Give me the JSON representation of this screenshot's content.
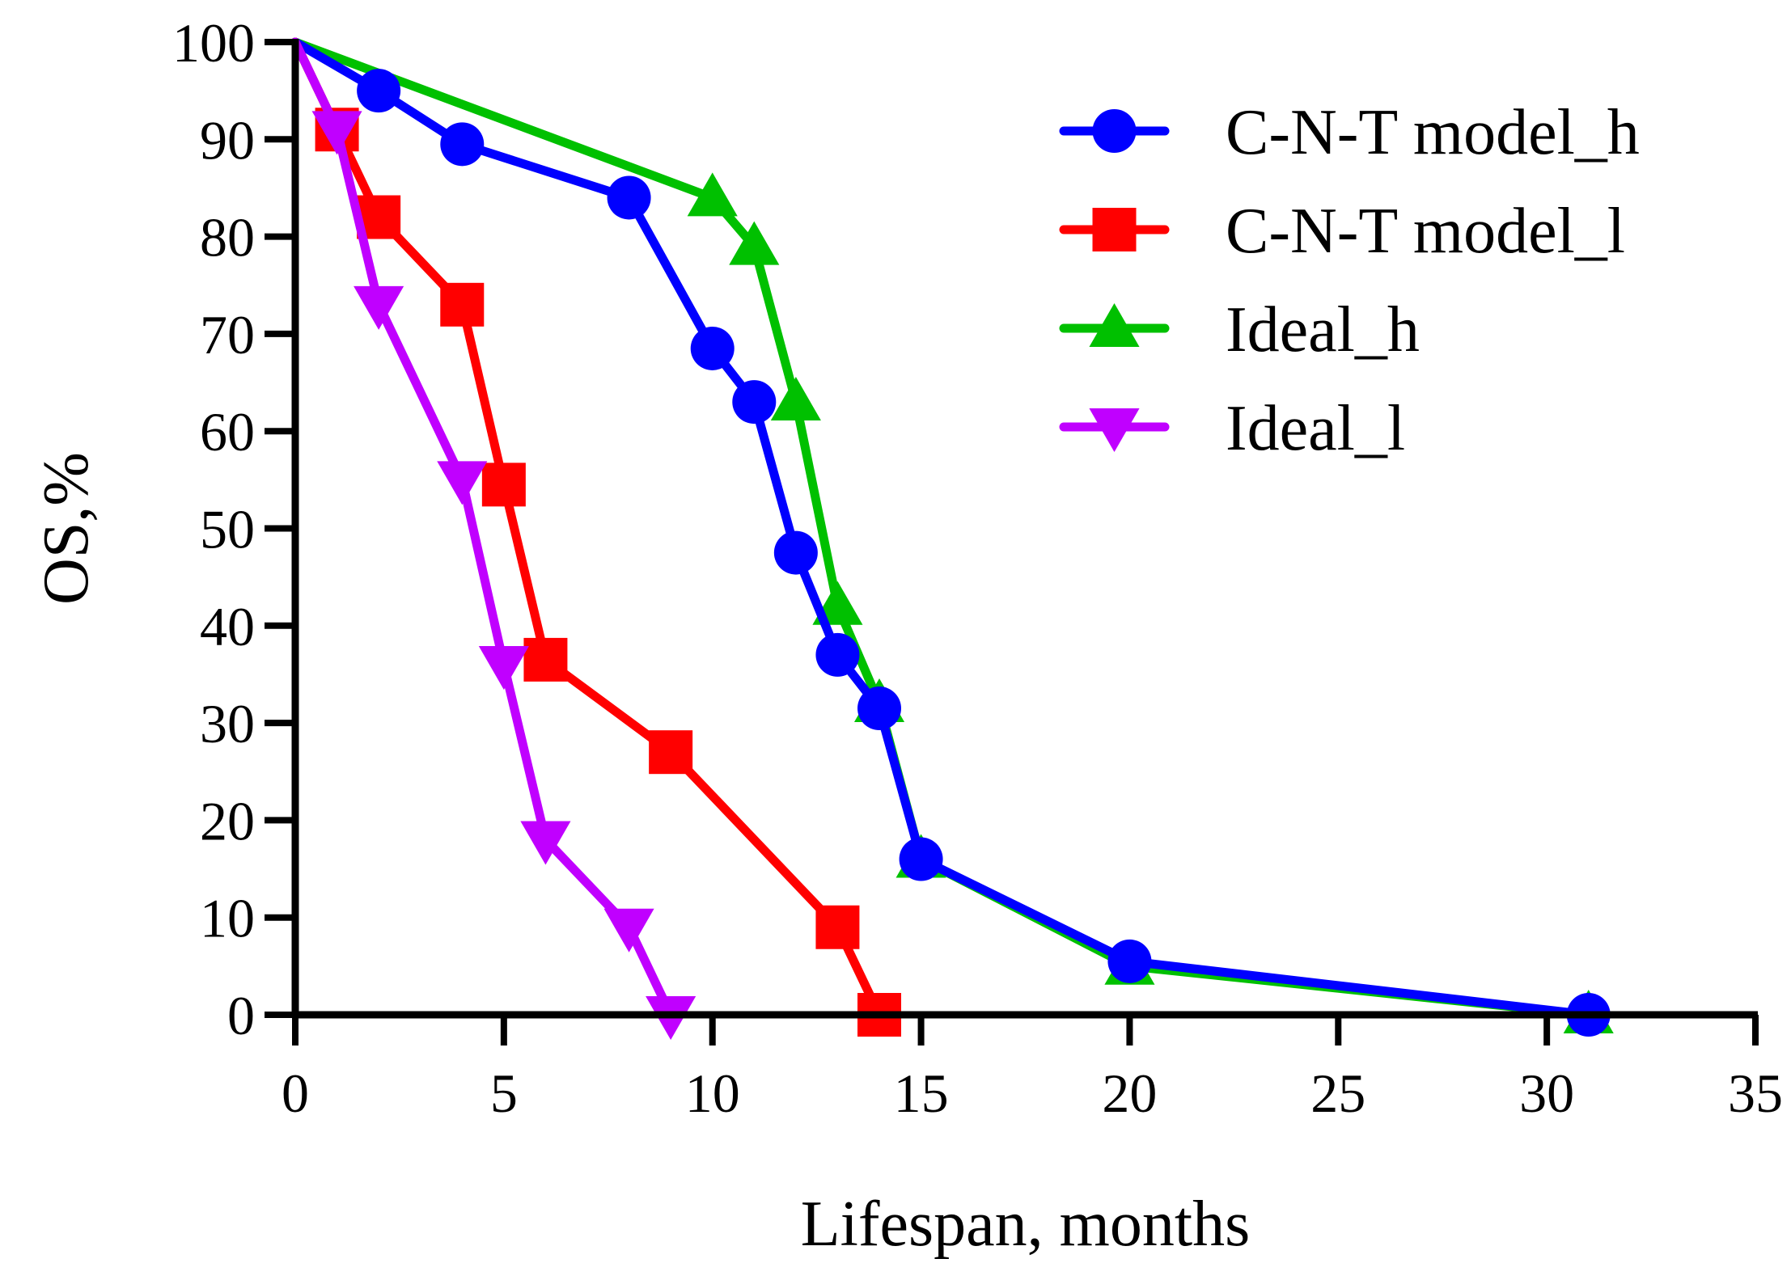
{
  "chart_data": {
    "type": "line",
    "title": "",
    "xlabel": "Lifespan, months",
    "ylabel": "OS,%",
    "xlim": [
      0,
      35
    ],
    "ylim": [
      0,
      100
    ],
    "xticks": [
      0,
      5,
      10,
      15,
      20,
      25,
      30,
      35
    ],
    "yticks": [
      0,
      10,
      20,
      30,
      40,
      50,
      60,
      70,
      80,
      90,
      100
    ],
    "grid": false,
    "legend_position": "top-right",
    "series": [
      {
        "name": "Ideal_h",
        "color": "#00c000",
        "marker": "triangle-up",
        "x": [
          0,
          10,
          11,
          12,
          13,
          14,
          15,
          20,
          31
        ],
        "y": [
          100,
          84,
          79,
          63,
          42,
          32,
          16,
          5,
          0
        ]
      },
      {
        "name": "C-N-T model_h",
        "color": "#0000ff",
        "marker": "circle",
        "x": [
          0,
          2,
          4,
          8,
          10,
          11,
          12,
          13,
          14,
          15,
          20,
          31
        ],
        "y": [
          100,
          95,
          89.5,
          84,
          68.5,
          63,
          47.5,
          37,
          31.5,
          16,
          5.5,
          0
        ]
      },
      {
        "name": "C-N-T model_l",
        "color": "#ff0000",
        "marker": "square",
        "x": [
          0,
          1,
          2,
          4,
          5,
          6,
          9,
          13,
          14
        ],
        "y": [
          100,
          91,
          82,
          73,
          54.5,
          36.5,
          27,
          9,
          0
        ]
      },
      {
        "name": "Ideal_l",
        "color": "#c000ff",
        "marker": "triangle-down",
        "x": [
          0,
          1,
          2,
          4,
          5,
          6,
          8,
          9
        ],
        "y": [
          100,
          91,
          73,
          55,
          36,
          18,
          9,
          0
        ]
      }
    ],
    "legend_order": [
      "C-N-T model_h",
      "C-N-T model_l",
      "Ideal_h",
      "Ideal_l"
    ]
  }
}
